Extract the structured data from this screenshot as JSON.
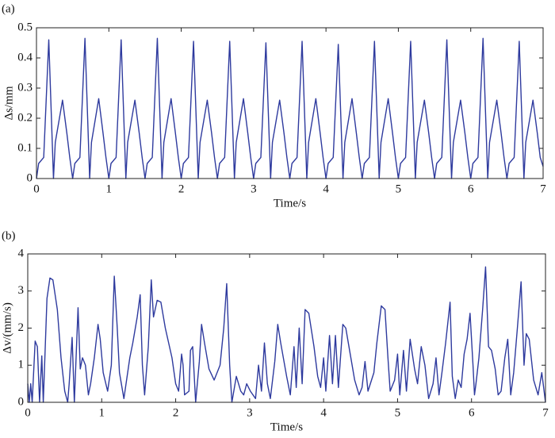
{
  "chart_data": [
    {
      "type": "line",
      "panel_label": "(a)",
      "x_label": "Time/s",
      "y_label": "Δs/mm",
      "color": "#2e3a9e",
      "xlim": [
        0,
        7
      ],
      "xticks": [
        0,
        1,
        2,
        3,
        4,
        5,
        6,
        7
      ],
      "ylim": [
        0,
        0.5
      ],
      "yticks": [
        0,
        0.1,
        0.2,
        0.3,
        0.4,
        0.5
      ],
      "x": [
        0,
        0.03,
        0.1,
        0.17,
        0.235,
        0.26,
        0.36,
        0.42,
        0.46,
        0.5,
        0.53,
        0.6,
        0.67,
        0.735,
        0.76,
        0.86,
        0.92,
        0.96,
        1,
        1.03,
        1.1,
        1.17,
        1.235,
        1.26,
        1.36,
        1.42,
        1.46,
        1.5,
        1.53,
        1.6,
        1.67,
        1.735,
        1.76,
        1.86,
        1.92,
        1.96,
        2,
        2.03,
        2.1,
        2.17,
        2.235,
        2.26,
        2.36,
        2.42,
        2.46,
        2.5,
        2.53,
        2.6,
        2.67,
        2.735,
        2.76,
        2.86,
        2.92,
        2.96,
        3,
        3.03,
        3.1,
        3.17,
        3.235,
        3.26,
        3.36,
        3.42,
        3.46,
        3.5,
        3.53,
        3.6,
        3.67,
        3.735,
        3.76,
        3.86,
        3.92,
        3.96,
        4,
        4.03,
        4.1,
        4.17,
        4.235,
        4.26,
        4.36,
        4.42,
        4.46,
        4.5,
        4.53,
        4.6,
        4.67,
        4.735,
        4.76,
        4.86,
        4.92,
        4.96,
        5,
        5.03,
        5.1,
        5.17,
        5.235,
        5.26,
        5.36,
        5.42,
        5.46,
        5.5,
        5.53,
        5.6,
        5.67,
        5.735,
        5.76,
        5.86,
        5.92,
        5.96,
        6,
        6.03,
        6.1,
        6.17,
        6.235,
        6.26,
        6.36,
        6.42,
        6.46,
        6.5,
        6.53,
        6.6,
        6.67,
        6.735,
        6.76,
        6.86,
        6.92,
        6.96,
        7
      ],
      "values": [
        0,
        0.05,
        0.07,
        0.46,
        0,
        0.12,
        0.26,
        0.15,
        0.07,
        0,
        0.05,
        0.07,
        0.465,
        0,
        0.12,
        0.265,
        0.15,
        0.07,
        0,
        0.05,
        0.07,
        0.46,
        0,
        0.12,
        0.26,
        0.15,
        0.07,
        0,
        0.05,
        0.07,
        0.465,
        0,
        0.12,
        0.265,
        0.15,
        0.07,
        0,
        0.05,
        0.07,
        0.455,
        0,
        0.12,
        0.26,
        0.15,
        0.07,
        0,
        0.05,
        0.07,
        0.455,
        0,
        0.12,
        0.265,
        0.15,
        0.07,
        0,
        0.05,
        0.07,
        0.45,
        0,
        0.12,
        0.26,
        0.15,
        0.07,
        0,
        0.05,
        0.07,
        0.455,
        0,
        0.12,
        0.265,
        0.15,
        0.07,
        0,
        0.05,
        0.07,
        0.445,
        0,
        0.12,
        0.265,
        0.15,
        0.07,
        0,
        0.05,
        0.07,
        0.455,
        0,
        0.12,
        0.265,
        0.15,
        0.07,
        0,
        0.05,
        0.07,
        0.455,
        0,
        0.12,
        0.26,
        0.15,
        0.07,
        0,
        0.05,
        0.07,
        0.46,
        0,
        0.12,
        0.26,
        0.15,
        0.07,
        0,
        0.05,
        0.07,
        0.465,
        0,
        0.12,
        0.26,
        0.15,
        0.07,
        0,
        0.05,
        0.07,
        0.455,
        0,
        0.12,
        0.26,
        0.15,
        0.07,
        0.04
      ]
    },
    {
      "type": "line",
      "panel_label": "(b)",
      "x_label": "Time/s",
      "y_label": "Δv/(mm/s)",
      "color": "#2e3a9e",
      "xlim": [
        0,
        7
      ],
      "xticks": [
        0,
        1,
        2,
        3,
        4,
        5,
        6,
        7
      ],
      "ylim": [
        0,
        4
      ],
      "yticks": [
        0,
        1,
        2,
        3,
        4
      ],
      "x": [
        0,
        0.02,
        0.04,
        0.06,
        0.1,
        0.13,
        0.16,
        0.19,
        0.21,
        0.26,
        0.3,
        0.34,
        0.4,
        0.45,
        0.5,
        0.54,
        0.56,
        0.6,
        0.63,
        0.68,
        0.71,
        0.74,
        0.78,
        0.82,
        0.85,
        0.9,
        0.95,
        0.98,
        1.02,
        1.08,
        1.13,
        1.17,
        1.21,
        1.24,
        1.3,
        1.38,
        1.42,
        1.48,
        1.52,
        1.55,
        1.58,
        1.63,
        1.67,
        1.7,
        1.75,
        1.8,
        1.86,
        1.95,
        2,
        2.04,
        2.08,
        2.1,
        2.12,
        2.18,
        2.2,
        2.23,
        2.27,
        2.32,
        2.35,
        2.39,
        2.45,
        2.52,
        2.6,
        2.65,
        2.69,
        2.73,
        2.76,
        2.82,
        2.88,
        2.92,
        2.96,
        3.01,
        3.08,
        3.12,
        3.16,
        3.2,
        3.24,
        3.28,
        3.34,
        3.38,
        3.42,
        3.5,
        3.55,
        3.6,
        3.63,
        3.67,
        3.71,
        3.75,
        3.8,
        3.87,
        3.92,
        3.96,
        4,
        4.03,
        4.08,
        4.12,
        4.16,
        4.2,
        4.26,
        4.3,
        4.36,
        4.42,
        4.48,
        4.52,
        4.56,
        4.6,
        4.68,
        4.72,
        4.78,
        4.83,
        4.87,
        4.9,
        4.96,
        5,
        5.03,
        5.08,
        5.12,
        5.17,
        5.23,
        5.27,
        5.32,
        5.37,
        5.42,
        5.48,
        5.52,
        5.56,
        5.6,
        5.65,
        5.71,
        5.74,
        5.78,
        5.82,
        5.86,
        5.9,
        5.94,
        5.98,
        6.02,
        6.04,
        6.06,
        6.1,
        6.15,
        6.19,
        6.23,
        6.27,
        6.32,
        6.36,
        6.4,
        6.45,
        6.49,
        6.53,
        6.57,
        6.62,
        6.67,
        6.71,
        6.74,
        6.78,
        6.84,
        6.9,
        6.95,
        7
      ],
      "values": [
        0.5,
        0,
        0.5,
        0,
        1.65,
        1.5,
        0,
        1.25,
        0,
        2.8,
        3.35,
        3.3,
        2.5,
        1.2,
        0.3,
        0,
        0.5,
        1.75,
        0,
        2.55,
        0.9,
        1.2,
        1,
        0.2,
        0.5,
        1.2,
        2.1,
        1.7,
        0.8,
        0.3,
        1,
        3.4,
        2,
        0.8,
        0.1,
        1.2,
        1.6,
        2.3,
        2.9,
        1,
        0.2,
        1.5,
        3.3,
        2.3,
        2.75,
        2.7,
        2,
        1.2,
        0.5,
        0.3,
        1.3,
        1,
        0.2,
        0.3,
        1.4,
        1.5,
        0,
        1.1,
        2.1,
        1.6,
        0.9,
        0.6,
        1,
        2,
        3.2,
        1,
        0,
        0.7,
        0.3,
        0.2,
        0.5,
        0.3,
        0.1,
        1,
        0.3,
        1.6,
        0.5,
        0.1,
        1.1,
        2.1,
        1.6,
        0.7,
        0.2,
        1.5,
        0.4,
        2,
        0.5,
        2.5,
        2.4,
        1.5,
        0.7,
        0.4,
        1.2,
        0.3,
        1.8,
        0.5,
        1.8,
        0.4,
        2.1,
        2,
        1.3,
        0.6,
        0.2,
        0.4,
        1.1,
        0.3,
        0.8,
        1.6,
        2.6,
        2.5,
        1.2,
        0.3,
        0.6,
        1.3,
        0.2,
        1.4,
        0.3,
        1.7,
        0.9,
        0.5,
        1.5,
        1,
        0.1,
        0.5,
        1.2,
        0.2,
        0.8,
        1.6,
        2.7,
        0.7,
        0.1,
        0.6,
        0.4,
        1.3,
        1.7,
        2.4,
        1,
        0.2,
        0.5,
        1.2,
        2.5,
        3.65,
        1.5,
        1.4,
        0.9,
        0.2,
        0.3,
        1.2,
        1.7,
        0.2,
        0.8,
        2,
        3.25,
        1,
        1.85,
        1.7,
        0.6,
        0.2,
        0.8,
        0
      ]
    }
  ]
}
